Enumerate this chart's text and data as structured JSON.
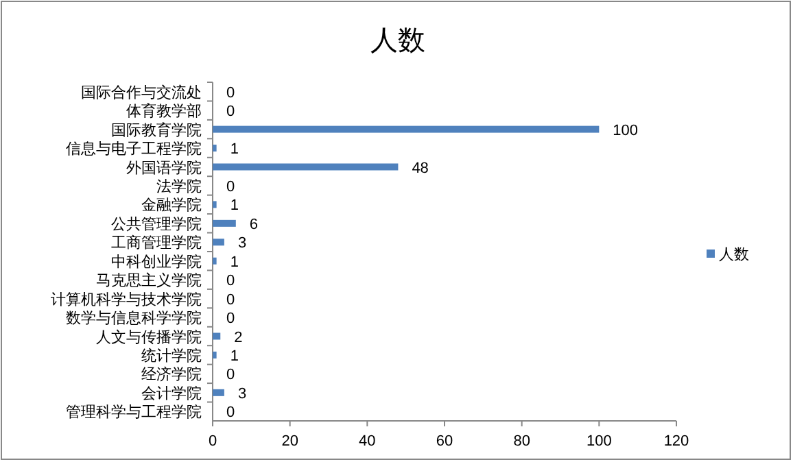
{
  "chart_data": {
    "type": "bar",
    "orientation": "horizontal",
    "title": "人数",
    "categories": [
      "国际合作与交流处",
      "体育教学部",
      "国际教育学院",
      "信息与电子工程学院",
      "外国语学院",
      "法学院",
      "金融学院",
      "公共管理学院",
      "工商管理学院",
      "中科创业学院",
      "马克思主义学院",
      "计算机科学与技术学院",
      "数学与信息科学学院",
      "人文与传播学院",
      "统计学院",
      "经济学院",
      "会计学院",
      "管理科学与工程学院"
    ],
    "series": [
      {
        "name": "人数",
        "color": "#4f81bd",
        "values": [
          0,
          0,
          100,
          1,
          48,
          0,
          1,
          6,
          3,
          1,
          0,
          0,
          0,
          2,
          1,
          0,
          3,
          0
        ]
      }
    ],
    "xlim": [
      0,
      120
    ],
    "xticks": [
      0,
      20,
      40,
      60,
      80,
      100,
      120
    ],
    "data_labels": true,
    "legend": "right"
  }
}
